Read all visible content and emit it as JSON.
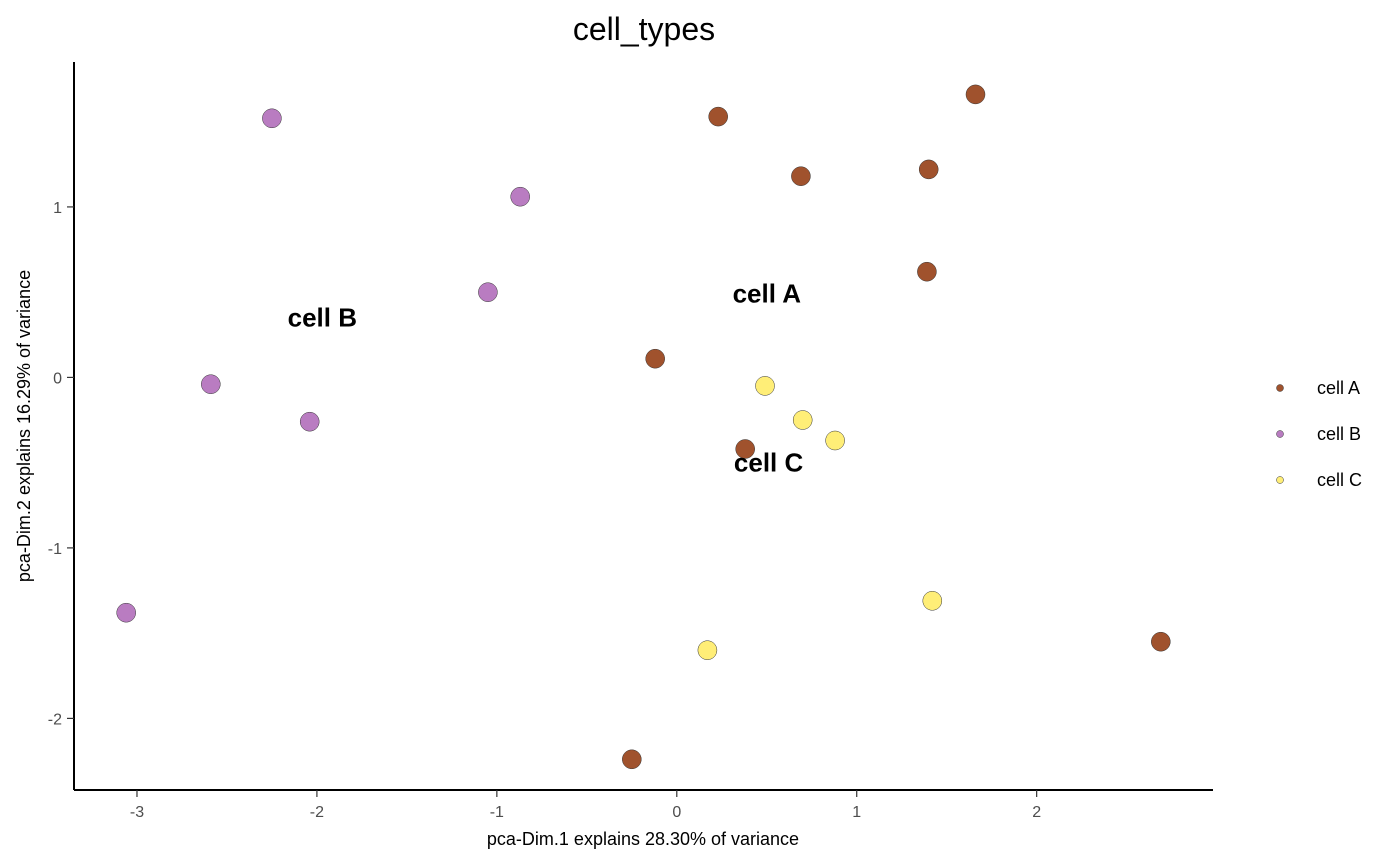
{
  "chart_data": {
    "type": "scatter",
    "title": "cell_types",
    "xlabel": "pca-Dim.1 explains 28.30% of variance",
    "ylabel": "pca-Dim.2 explains 16.29% of variance",
    "xlim": [
      -3.35,
      2.98
    ],
    "ylim": [
      -2.42,
      1.85
    ],
    "x_ticks": [
      -3,
      -2,
      -1,
      0,
      1,
      2
    ],
    "y_ticks": [
      -2,
      -1,
      0,
      1
    ],
    "grid": false,
    "legend_position": "right",
    "series": [
      {
        "name": "cell A",
        "color": "#A0522D",
        "points": [
          [
            0.23,
            1.53
          ],
          [
            1.66,
            1.66
          ],
          [
            0.69,
            1.18
          ],
          [
            1.4,
            1.22
          ],
          [
            1.39,
            0.62
          ],
          [
            -0.12,
            0.11
          ],
          [
            0.38,
            -0.42
          ],
          [
            2.69,
            -1.55
          ],
          [
            -0.25,
            -2.24
          ]
        ]
      },
      {
        "name": "cell B",
        "color": "#B97CC1",
        "points": [
          [
            -2.25,
            1.52
          ],
          [
            -0.87,
            1.06
          ],
          [
            -1.05,
            0.5
          ],
          [
            -2.59,
            -0.04
          ],
          [
            -2.04,
            -0.26
          ],
          [
            -3.06,
            -1.38
          ]
        ]
      },
      {
        "name": "cell C",
        "color": "#FFEE77",
        "points": [
          [
            0.49,
            -0.05
          ],
          [
            0.7,
            -0.25
          ],
          [
            0.88,
            -0.37
          ],
          [
            1.42,
            -1.31
          ],
          [
            0.17,
            -1.6
          ]
        ]
      }
    ],
    "annotations": [
      {
        "text": "cell A",
        "x": 0.5,
        "y": 0.48
      },
      {
        "text": "cell B",
        "x": -1.97,
        "y": 0.34
      },
      {
        "text": "cell C",
        "x": 0.51,
        "y": -0.51
      }
    ]
  }
}
